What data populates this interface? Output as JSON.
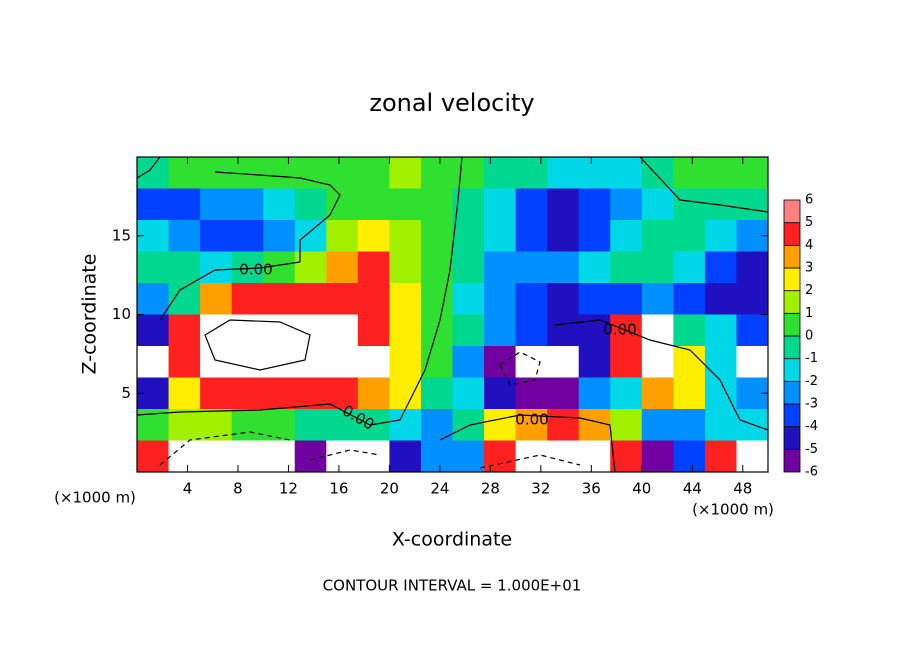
{
  "chart_data": {
    "type": "heatmap",
    "title": "zonal velocity",
    "x_label": "X-coordinate",
    "y_label": "Z-coordinate",
    "x_unit": "(×1000 m)",
    "y_unit": "(×1000 m)",
    "footer": "CONTOUR INTERVAL = 1.000E+01",
    "contour_labels": [
      "0.00",
      "0.00",
      "0.00",
      "0.00"
    ],
    "xlim": [
      0,
      50
    ],
    "ylim": [
      0,
      20
    ],
    "xticks": [
      4,
      8,
      12,
      16,
      20,
      24,
      28,
      32,
      36,
      40,
      44,
      48
    ],
    "yticks": [
      5,
      10,
      15
    ],
    "x": [
      1.25,
      3.75,
      6.25,
      8.75,
      11.25,
      13.75,
      16.25,
      18.75,
      21.25,
      23.75,
      26.25,
      28.75,
      31.25,
      33.75,
      36.25,
      38.75,
      41.25,
      43.75,
      46.25,
      48.75
    ],
    "y": [
      19,
      17,
      15,
      13,
      11,
      9,
      7,
      5,
      3,
      1
    ],
    "values": [
      [
        0,
        0.5,
        0.5,
        0.5,
        1,
        1,
        1,
        1,
        1.5,
        1,
        0.5,
        0,
        -0.5,
        -1,
        -1.5,
        -1.5,
        0,
        0.5,
        0.5,
        0.5
      ],
      [
        -3.5,
        -3,
        -2.5,
        -2,
        -1,
        0,
        0.5,
        1,
        1,
        1,
        0,
        -1,
        -3,
        -4,
        -3,
        -2,
        -1.5,
        -0.5,
        0,
        -0.5
      ],
      [
        -1,
        -2,
        -3.5,
        -3.5,
        -2.5,
        -1,
        2,
        3,
        1.5,
        1,
        0,
        -1.5,
        -3,
        -4,
        -3,
        -1.5,
        -0.5,
        0,
        -1,
        -2.5
      ],
      [
        0,
        -0.5,
        -1,
        -0.5,
        1,
        2,
        4,
        5,
        2,
        1,
        0,
        -2,
        -2.5,
        -2,
        -1.5,
        -0.5,
        -0.5,
        -1,
        -3,
        -4
      ],
      [
        -2,
        0,
        4,
        5,
        5,
        5,
        5,
        4.5,
        3,
        1,
        -1,
        -2,
        -3,
        -4,
        -3.5,
        -3,
        -2.5,
        -3,
        -4,
        -4
      ],
      [
        -4,
        5,
        8,
        8,
        8,
        8,
        8,
        5,
        3,
        1,
        0,
        -2,
        -3,
        -4,
        -4,
        5,
        8,
        0,
        -1,
        -3
      ],
      [
        8,
        5,
        8,
        8,
        8,
        8,
        8,
        8,
        3,
        0.5,
        -2,
        -5,
        8,
        8,
        -4,
        5,
        8,
        3,
        -1,
        8
      ],
      [
        -4,
        3,
        5,
        5,
        5,
        5,
        5,
        4,
        3,
        0,
        -1,
        -4,
        -5,
        -5,
        -2,
        -1,
        4,
        3,
        -1,
        -2
      ],
      [
        0.5,
        1.5,
        1.5,
        1,
        0.5,
        0,
        -0.5,
        0,
        -1,
        -2,
        0,
        3,
        4,
        5,
        4,
        2,
        -2,
        -2,
        -1.5,
        -1
      ],
      [
        5,
        8,
        8,
        8,
        8,
        -5,
        8,
        8,
        -4,
        -2,
        -2,
        5,
        8,
        8,
        8,
        5,
        -5,
        -3,
        5,
        8
      ]
    ],
    "colorbar_ticks": [
      -6,
      -5,
      -4,
      -3,
      -2,
      -1,
      0,
      1,
      2,
      3,
      4,
      5,
      6
    ],
    "colorbar_colors": [
      "#7000a0",
      "#2010c0",
      "#0040ff",
      "#0090ff",
      "#00d8e8",
      "#00d890",
      "#30e030",
      "#a0f000",
      "#ffee00",
      "#ffa000",
      "#ff2020",
      "#ff8080"
    ],
    "over_color": "#ffffff"
  }
}
